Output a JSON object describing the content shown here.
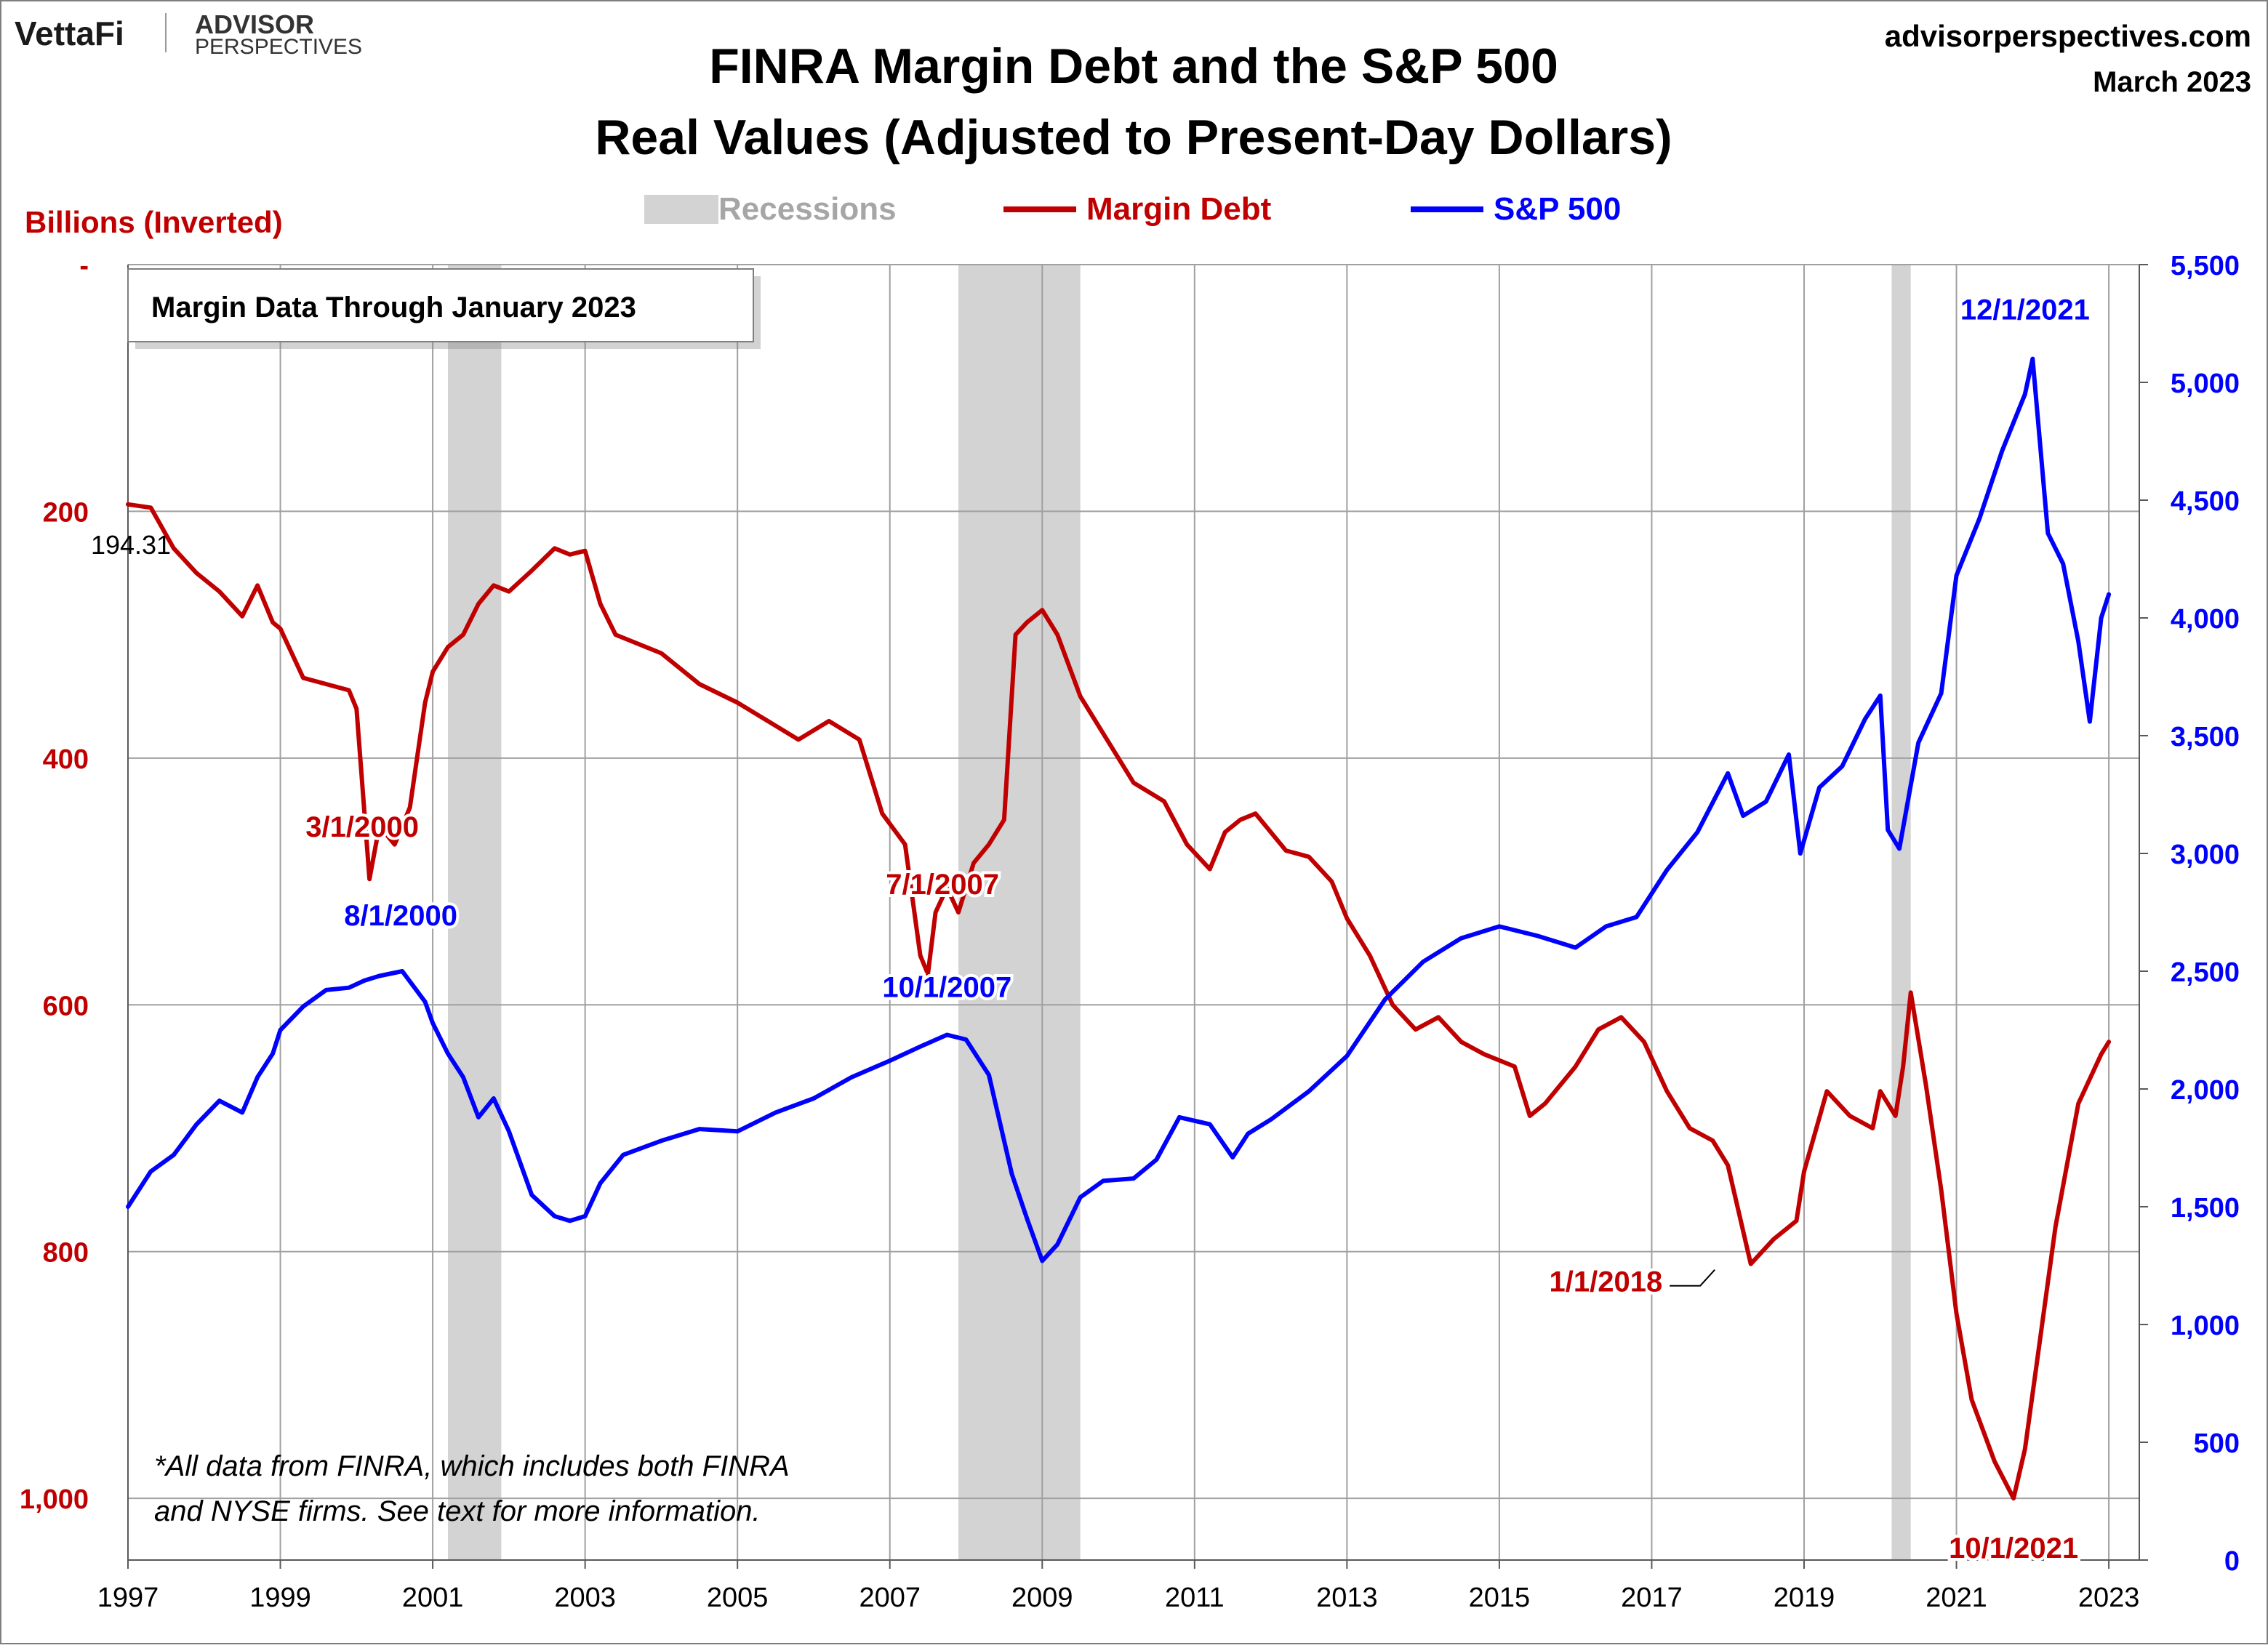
{
  "header": {
    "brand_vettafi": "VettaFi",
    "brand_advisor": "ADVISOR",
    "brand_perspectives": "PERSPECTIVES",
    "site": "advisorperspectives.com",
    "date": "March 2023"
  },
  "chart_data": {
    "type": "line",
    "title": "FINRA Margin Debt and the S&P 500",
    "subtitle": "Real Values (Adjusted to Present-Day Dollars)",
    "ylabel_left": "Billions (Inverted)",
    "legend": {
      "position": "top",
      "entries": [
        "Recessions",
        "Margin Debt",
        "S&P 500"
      ]
    },
    "colors": {
      "margin_debt": "#c00000",
      "sp500": "#0000ff",
      "recession": "#d3d3d3",
      "left_axis": "#c00000",
      "right_axis": "#0000ff",
      "grid": "#a0a0a0"
    },
    "x_axis": {
      "range": [
        1997.0,
        2023.4
      ],
      "ticks": [
        "1997",
        "1999",
        "2001",
        "2003",
        "2005",
        "2007",
        "2009",
        "2011",
        "2013",
        "2015",
        "2017",
        "2019",
        "2021",
        "2023"
      ]
    },
    "y_left": {
      "inverted": true,
      "range": [
        0,
        1050
      ],
      "ticks": [
        {
          "value": 0,
          "label": "-"
        },
        {
          "value": 200,
          "label": "200"
        },
        {
          "value": 400,
          "label": "400"
        },
        {
          "value": 600,
          "label": "600"
        },
        {
          "value": 800,
          "label": "800"
        },
        {
          "value": 1000,
          "label": "1,000"
        }
      ]
    },
    "y_right": {
      "range": [
        0,
        5500
      ],
      "ticks": [
        {
          "value": 0,
          "label": "0"
        },
        {
          "value": 500,
          "label": "500"
        },
        {
          "value": 1000,
          "label": "1,000"
        },
        {
          "value": 1500,
          "label": "1,500"
        },
        {
          "value": 2000,
          "label": "2,000"
        },
        {
          "value": 2500,
          "label": "2,500"
        },
        {
          "value": 3000,
          "label": "3,000"
        },
        {
          "value": 3500,
          "label": "3,500"
        },
        {
          "value": 4000,
          "label": "4,000"
        },
        {
          "value": 4500,
          "label": "4,500"
        },
        {
          "value": 5000,
          "label": "5,000"
        },
        {
          "value": 5500,
          "label": "5,500"
        }
      ]
    },
    "grid": true,
    "recessions": [
      {
        "start": 2001.2,
        "end": 2001.9
      },
      {
        "start": 2007.9,
        "end": 2009.5
      },
      {
        "start": 2020.15,
        "end": 2020.4
      }
    ],
    "series": [
      {
        "name": "Margin Debt",
        "axis": "left",
        "x": [
          1997.0,
          1997.3,
          1997.6,
          1997.9,
          1998.2,
          1998.5,
          1998.7,
          1998.9,
          1999.0,
          1999.3,
          1999.6,
          1999.9,
          2000.0,
          2000.17,
          2000.3,
          2000.5,
          2000.7,
          2000.9,
          2001.0,
          2001.2,
          2001.4,
          2001.6,
          2001.8,
          2002.0,
          2002.3,
          2002.6,
          2002.8,
          2003.0,
          2003.2,
          2003.4,
          2003.6,
          2004.0,
          2004.5,
          2005.0,
          2005.4,
          2005.8,
          2006.2,
          2006.6,
          2006.9,
          2007.2,
          2007.4,
          2007.5,
          2007.6,
          2007.75,
          2007.9,
          2008.1,
          2008.3,
          2008.5,
          2008.65,
          2008.8,
          2009.0,
          2009.2,
          2009.5,
          2009.8,
          2010.2,
          2010.6,
          2010.9,
          2011.2,
          2011.4,
          2011.6,
          2011.8,
          2012.0,
          2012.2,
          2012.5,
          2012.8,
          2013.0,
          2013.3,
          2013.6,
          2013.9,
          2014.2,
          2014.5,
          2014.8,
          2015.2,
          2015.4,
          2015.6,
          2016.0,
          2016.3,
          2016.6,
          2016.9,
          2017.2,
          2017.5,
          2017.8,
          2018.0,
          2018.3,
          2018.6,
          2018.9,
          2019.0,
          2019.3,
          2019.6,
          2019.9,
          2020.0,
          2020.2,
          2020.3,
          2020.4,
          2020.6,
          2020.8,
          2021.0,
          2021.2,
          2021.5,
          2021.75,
          2021.9,
          2022.1,
          2022.3,
          2022.6,
          2022.9,
          2023.0
        ],
        "y": [
          194.31,
          197,
          230,
          250,
          265,
          285,
          260,
          290,
          295,
          335,
          340,
          345,
          360,
          498,
          455,
          470,
          440,
          355,
          330,
          310,
          300,
          275,
          260,
          265,
          248,
          230,
          235,
          232,
          275,
          300,
          305,
          315,
          340,
          355,
          370,
          385,
          370,
          385,
          445,
          470,
          560,
          575,
          525,
          505,
          525,
          485,
          470,
          450,
          300,
          290,
          280,
          300,
          350,
          380,
          420,
          435,
          470,
          490,
          460,
          450,
          445,
          460,
          475,
          480,
          500,
          530,
          560,
          600,
          620,
          610,
          630,
          640,
          650,
          690,
          680,
          650,
          620,
          610,
          630,
          670,
          700,
          710,
          730,
          810,
          790,
          775,
          735,
          670,
          690,
          700,
          670,
          690,
          650,
          590,
          665,
          750,
          850,
          920,
          970,
          1000,
          960,
          870,
          780,
          680,
          640,
          630
        ],
        "annotations": [
          {
            "label": "3/1/2000",
            "x": 2000.17,
            "value": 498
          },
          {
            "label": "7/1/2007",
            "x": 2007.5,
            "value": 575
          },
          {
            "label": "1/1/2018",
            "x": 2018.0,
            "value": 810
          },
          {
            "label": "10/1/2021",
            "x": 2021.75,
            "value": 1000
          },
          {
            "label": "194.31",
            "x": 1997.0,
            "value": 194.31
          }
        ]
      },
      {
        "name": "S&P 500",
        "axis": "right",
        "x": [
          1997.0,
          1997.3,
          1997.6,
          1997.9,
          1998.2,
          1998.5,
          1998.7,
          1998.9,
          1999.0,
          1999.3,
          1999.6,
          1999.9,
          2000.1,
          2000.3,
          2000.6,
          2000.9,
          2001.0,
          2001.2,
          2001.4,
          2001.6,
          2001.8,
          2002.0,
          2002.3,
          2002.6,
          2002.8,
          2003.0,
          2003.2,
          2003.5,
          2004.0,
          2004.5,
          2005.0,
          2005.5,
          2006.0,
          2006.5,
          2007.0,
          2007.4,
          2007.75,
          2008.0,
          2008.3,
          2008.6,
          2008.8,
          2009.0,
          2009.2,
          2009.5,
          2009.8,
          2010.2,
          2010.5,
          2010.8,
          2011.2,
          2011.5,
          2011.7,
          2012.0,
          2012.5,
          2013.0,
          2013.5,
          2014.0,
          2014.5,
          2015.0,
          2015.5,
          2016.0,
          2016.4,
          2016.8,
          2017.2,
          2017.6,
          2018.0,
          2018.2,
          2018.5,
          2018.8,
          2018.95,
          2019.2,
          2019.5,
          2019.8,
          2020.0,
          2020.1,
          2020.25,
          2020.5,
          2020.8,
          2021.0,
          2021.3,
          2021.6,
          2021.9,
          2022.0,
          2022.2,
          2022.4,
          2022.6,
          2022.75,
          2022.9,
          2023.0
        ],
        "y": [
          1500,
          1650,
          1720,
          1850,
          1950,
          1900,
          2050,
          2150,
          2250,
          2350,
          2420,
          2430,
          2460,
          2480,
          2500,
          2370,
          2280,
          2150,
          2050,
          1880,
          1960,
          1820,
          1550,
          1460,
          1440,
          1460,
          1600,
          1720,
          1780,
          1830,
          1820,
          1900,
          1960,
          2050,
          2120,
          2180,
          2230,
          2210,
          2060,
          1640,
          1450,
          1270,
          1340,
          1540,
          1610,
          1620,
          1700,
          1880,
          1850,
          1710,
          1810,
          1870,
          1990,
          2140,
          2380,
          2540,
          2640,
          2690,
          2650,
          2600,
          2690,
          2730,
          2930,
          3090,
          3340,
          3160,
          3220,
          3420,
          3000,
          3280,
          3370,
          3570,
          3670,
          3100,
          3020,
          3470,
          3680,
          4180,
          4420,
          4710,
          4950,
          5100,
          4360,
          4230,
          3900,
          3560,
          4000,
          4100
        ]
      }
    ],
    "sp_annotations": [
      {
        "label": "8/1/2000",
        "x": 2000.58,
        "value": 2510
      },
      {
        "label": "10/1/2007",
        "x": 2007.75,
        "value": 2230
      },
      {
        "label": "12/1/2021",
        "x": 2021.9,
        "value": 5100
      }
    ],
    "box_note": "Margin Data Through January 2023",
    "footnote_line1": "*All data from FINRA, which includes both FINRA",
    "footnote_line2": "and NYSE firms. See text for more information."
  }
}
